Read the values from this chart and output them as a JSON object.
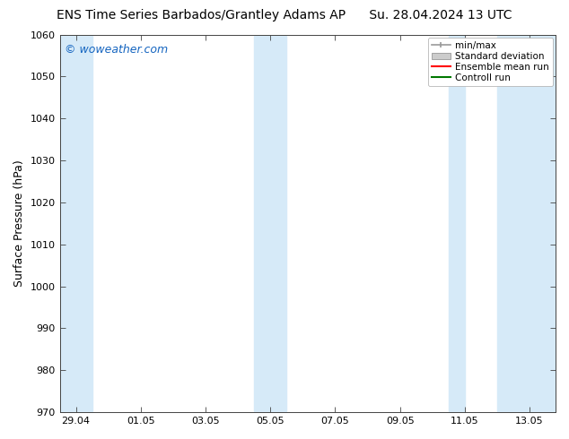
{
  "title_left": "ENS Time Series Barbados/Grantley Adams AP",
  "title_right": "Su. 28.04.2024 13 UTC",
  "ylabel": "Surface Pressure (hPa)",
  "ylim": [
    970,
    1060
  ],
  "yticks": [
    970,
    980,
    990,
    1000,
    1010,
    1020,
    1030,
    1040,
    1050,
    1060
  ],
  "xtick_labels": [
    "29.04",
    "01.05",
    "03.05",
    "05.05",
    "07.05",
    "09.05",
    "11.05",
    "13.05"
  ],
  "xtick_positions": [
    0,
    2,
    4,
    6,
    8,
    10,
    12,
    14
  ],
  "xlim": [
    -0.5,
    14.8
  ],
  "shaded_bands": [
    {
      "x_start": -0.5,
      "x_end": 0.5,
      "color": "#d6eaf8"
    },
    {
      "x_start": 5.5,
      "x_end": 6.5,
      "color": "#d6eaf8"
    },
    {
      "x_start": 11.5,
      "x_end": 12.0,
      "color": "#d6eaf8"
    },
    {
      "x_start": 13.0,
      "x_end": 14.8,
      "color": "#d6eaf8"
    }
  ],
  "watermark_text": "© woweather.com",
  "watermark_color": "#1565c0",
  "bg_color": "#ffffff",
  "plot_bg_color": "#ffffff",
  "legend_items": [
    {
      "label": "min/max",
      "color": "#999999",
      "style": "line_with_caps"
    },
    {
      "label": "Standard deviation",
      "color": "#cccccc",
      "style": "filled_box"
    },
    {
      "label": "Ensemble mean run",
      "color": "#ff0000",
      "style": "line"
    },
    {
      "label": "Controll run",
      "color": "#007700",
      "style": "line"
    }
  ],
  "title_fontsize": 10,
  "tick_fontsize": 8,
  "legend_fontsize": 7.5,
  "watermark_fontsize": 9,
  "ylabel_fontsize": 9
}
